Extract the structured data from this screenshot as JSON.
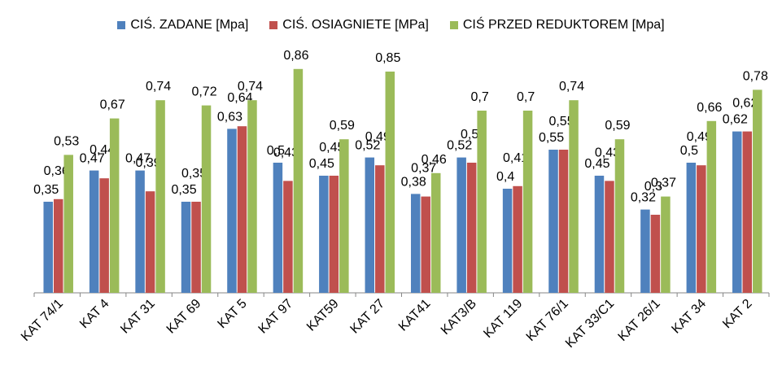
{
  "chart_data": {
    "type": "bar",
    "title": "",
    "xlabel": "",
    "ylabel": "",
    "ylim": [
      0,
      0.95
    ],
    "grid": false,
    "legend_position": "top",
    "categories": [
      "KAT 74/1",
      "KAT 4",
      "KAT 31",
      "KAT 69",
      "KAT 5",
      "KAT 97",
      "KAT59",
      "KAT 27",
      "KAT41",
      "KAT3/B",
      "KAT 119",
      "KAT 76/1",
      "KAT 33/C1",
      "KAT 26/1",
      "KAT 34",
      "KAT 2"
    ],
    "series": [
      {
        "name": "CIŚ. ZADANE [Mpa]",
        "color": "#4f81bd",
        "values": [
          0.35,
          0.47,
          0.47,
          0.35,
          0.63,
          0.5,
          0.45,
          0.52,
          0.38,
          0.52,
          0.4,
          0.55,
          0.45,
          0.32,
          0.5,
          0.62
        ]
      },
      {
        "name": "CIŚ. OSIAGNIETE [MPa]",
        "color": "#c0504d",
        "values": [
          0.36,
          0.44,
          0.39,
          0.35,
          0.64,
          0.43,
          0.45,
          0.49,
          0.37,
          0.5,
          0.41,
          0.55,
          0.43,
          0.3,
          0.49,
          0.62
        ]
      },
      {
        "name": "CIŚ PRZED REDUKTOREM [Mpa]",
        "color": "#9bbb59",
        "values": [
          0.53,
          0.67,
          0.74,
          0.72,
          0.74,
          0.86,
          0.59,
          0.85,
          0.46,
          0.7,
          0.7,
          0.74,
          0.59,
          0.37,
          0.66,
          0.78
        ]
      }
    ]
  }
}
